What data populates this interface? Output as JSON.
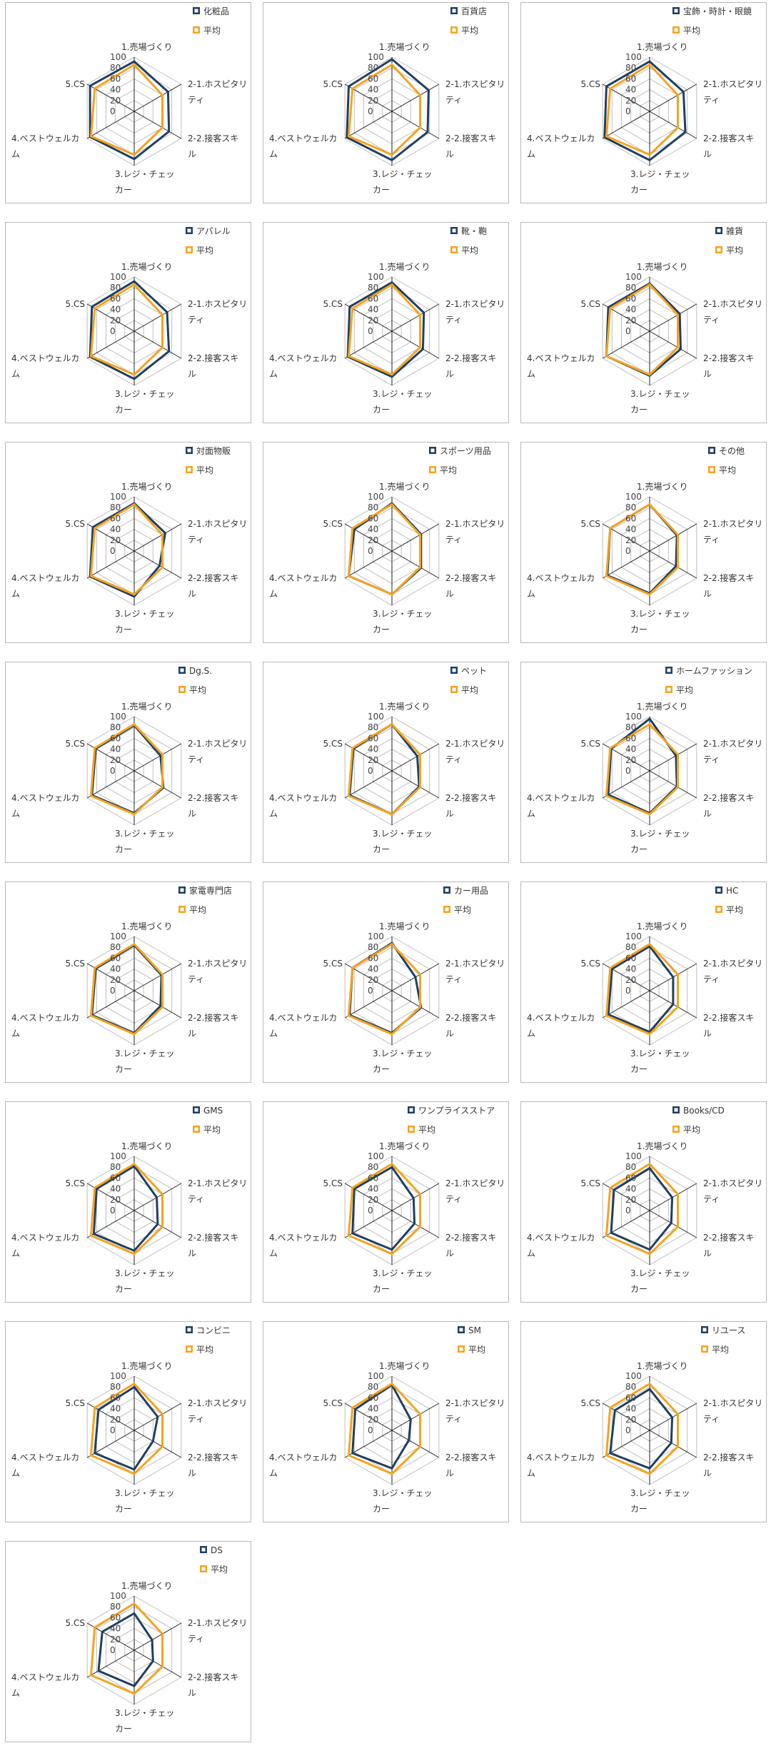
{
  "legend_average": "平均",
  "colors": {
    "category": "#1f3f63",
    "average": "#f5a31e",
    "grid": "#bfbfbf",
    "spoke": "#222222"
  },
  "axis_labels": [
    [
      "1.売場づくり"
    ],
    [
      "2-1.ホスピタリ",
      "ティ"
    ],
    [
      "2-2.接客スキ",
      "ル"
    ],
    [
      "3.レジ・チェッ",
      "カー"
    ],
    [
      "4.ベストウェルカ",
      "ム"
    ],
    [
      "5.CS"
    ]
  ],
  "chart_data": [
    {
      "type": "radar",
      "title": "化粧品",
      "ylim": [
        0,
        100
      ],
      "ticks": [
        0,
        20,
        40,
        60,
        80,
        100
      ],
      "categories": [
        "1.売場づくり",
        "2-1.ホスピタリティ",
        "2-2.接客スキル",
        "3.レジ・チェッカー",
        "4.ベストウェルカム",
        "5.CS"
      ],
      "series": [
        {
          "name": "化粧品",
          "values": [
            92,
            72,
            74,
            88,
            94,
            94
          ]
        },
        {
          "name": "平均",
          "values": [
            86,
            60,
            60,
            80,
            92,
            84
          ]
        }
      ]
    },
    {
      "type": "radar",
      "title": "百貨店",
      "ylim": [
        0,
        100
      ],
      "ticks": [
        0,
        20,
        40,
        60,
        80,
        100
      ],
      "categories": [
        "1.売場づくり",
        "2-1.ホスピタリティ",
        "2-2.接客スキル",
        "3.レジ・チェッカー",
        "4.ベストウェルカム",
        "5.CS"
      ],
      "series": [
        {
          "name": "百貨店",
          "values": [
            96,
            78,
            76,
            90,
            96,
            92
          ]
        },
        {
          "name": "平均",
          "values": [
            86,
            60,
            60,
            80,
            92,
            84
          ]
        }
      ]
    },
    {
      "type": "radar",
      "title": "宝飾・時計・眼鏡",
      "ylim": [
        0,
        100
      ],
      "ticks": [
        0,
        20,
        40,
        60,
        80,
        100
      ],
      "categories": [
        "1.売場づくり",
        "2-1.ホスピタリティ",
        "2-2.接客スキル",
        "3.レジ・チェッカー",
        "4.ベストウェルカム",
        "5.CS"
      ],
      "series": [
        {
          "name": "宝飾・時計・眼鏡",
          "values": [
            92,
            72,
            76,
            90,
            96,
            92
          ]
        },
        {
          "name": "平均",
          "values": [
            86,
            60,
            60,
            80,
            92,
            84
          ]
        }
      ]
    },
    {
      "type": "radar",
      "title": "アパレル",
      "ylim": [
        0,
        100
      ],
      "ticks": [
        0,
        20,
        40,
        60,
        80,
        100
      ],
      "categories": [
        "1.売場づくり",
        "2-1.ホスピタリティ",
        "2-2.接客スキル",
        "3.レジ・チェッカー",
        "4.ベストウェルカム",
        "5.CS"
      ],
      "series": [
        {
          "name": "アパレル",
          "values": [
            92,
            70,
            74,
            88,
            94,
            90
          ]
        },
        {
          "name": "平均",
          "values": [
            86,
            60,
            60,
            80,
            92,
            84
          ]
        }
      ]
    },
    {
      "type": "radar",
      "title": "靴・鞄",
      "ylim": [
        0,
        100
      ],
      "ticks": [
        0,
        20,
        40,
        60,
        80,
        100
      ],
      "categories": [
        "1.売場づくり",
        "2-1.ホスピタリティ",
        "2-2.接客スキル",
        "3.レジ・チェッカー",
        "4.ベストウェルカム",
        "5.CS"
      ],
      "series": [
        {
          "name": "靴・鞄",
          "values": [
            90,
            68,
            66,
            84,
            94,
            90
          ]
        },
        {
          "name": "平均",
          "values": [
            86,
            60,
            60,
            80,
            92,
            84
          ]
        }
      ]
    },
    {
      "type": "radar",
      "title": "雑貨",
      "ylim": [
        0,
        100
      ],
      "ticks": [
        0,
        20,
        40,
        60,
        80,
        100
      ],
      "categories": [
        "1.売場づくり",
        "2-1.ホスピタリティ",
        "2-2.接客スキル",
        "3.レジ・チェッカー",
        "4.ベストウェルカム",
        "5.CS"
      ],
      "series": [
        {
          "name": "雑貨",
          "values": [
            88,
            64,
            66,
            82,
            92,
            88
          ]
        },
        {
          "name": "平均",
          "values": [
            86,
            60,
            60,
            80,
            92,
            84
          ]
        }
      ]
    },
    {
      "type": "radar",
      "title": "対面物販",
      "ylim": [
        0,
        100
      ],
      "ticks": [
        0,
        20,
        40,
        60,
        80,
        100
      ],
      "categories": [
        "1.売場づくり",
        "2-1.ホスピタリティ",
        "2-2.接客スキル",
        "3.レジ・チェッカー",
        "4.ベストウェルカム",
        "5.CS"
      ],
      "series": [
        {
          "name": "対面物販",
          "values": [
            88,
            66,
            54,
            84,
            94,
            88
          ]
        },
        {
          "name": "平均",
          "values": [
            86,
            60,
            60,
            80,
            92,
            84
          ]
        }
      ]
    },
    {
      "type": "radar",
      "title": "スポーツ用品",
      "ylim": [
        0,
        100
      ],
      "ticks": [
        0,
        20,
        40,
        60,
        80,
        100
      ],
      "categories": [
        "1.売場づくり",
        "2-1.ホスピタリティ",
        "2-2.接客スキル",
        "3.レジ・チェッカー",
        "4.ベストウェルカム",
        "5.CS"
      ],
      "series": [
        {
          "name": "スポーツ用品",
          "values": [
            88,
            62,
            62,
            80,
            92,
            80
          ]
        },
        {
          "name": "平均",
          "values": [
            86,
            60,
            60,
            80,
            92,
            84
          ]
        }
      ]
    },
    {
      "type": "radar",
      "title": "その他",
      "ylim": [
        0,
        100
      ],
      "ticks": [
        0,
        20,
        40,
        60,
        80,
        100
      ],
      "categories": [
        "1.売場づくり",
        "2-1.ホスピタリティ",
        "2-2.接客スキル",
        "3.レジ・チェッカー",
        "4.ベストウェルカム",
        "5.CS"
      ],
      "series": [
        {
          "name": "その他",
          "values": [
            86,
            58,
            56,
            78,
            90,
            84
          ]
        },
        {
          "name": "平均",
          "values": [
            86,
            60,
            60,
            80,
            92,
            84
          ]
        }
      ]
    },
    {
      "type": "radar",
      "title": "Dg.S.",
      "ylim": [
        0,
        100
      ],
      "ticks": [
        0,
        20,
        40,
        60,
        80,
        100
      ],
      "categories": [
        "1.売場づくり",
        "2-1.ホスピタリティ",
        "2-2.接客スキル",
        "3.レジ・チェッカー",
        "4.ベストウェルカム",
        "5.CS"
      ],
      "series": [
        {
          "name": "Dg.S.",
          "values": [
            84,
            56,
            62,
            78,
            90,
            82
          ]
        },
        {
          "name": "平均",
          "values": [
            86,
            60,
            60,
            80,
            92,
            84
          ]
        }
      ]
    },
    {
      "type": "radar",
      "title": "ペット",
      "ylim": [
        0,
        100
      ],
      "ticks": [
        0,
        20,
        40,
        60,
        80,
        100
      ],
      "categories": [
        "1.売場づくり",
        "2-1.ホスピタリティ",
        "2-2.接客スキル",
        "3.レジ・チェッカー",
        "4.ベストウェルカム",
        "5.CS"
      ],
      "series": [
        {
          "name": "ペット",
          "values": [
            86,
            54,
            58,
            80,
            90,
            82
          ]
        },
        {
          "name": "平均",
          "values": [
            86,
            60,
            60,
            80,
            92,
            84
          ]
        }
      ]
    },
    {
      "type": "radar",
      "title": "ホームファッション",
      "ylim": [
        0,
        100
      ],
      "ticks": [
        0,
        20,
        40,
        60,
        80,
        100
      ],
      "categories": [
        "1.売場づくり",
        "2-1.ホスピタリティ",
        "2-2.接客スキル",
        "3.レジ・チェッカー",
        "4.ベストウェルカム",
        "5.CS"
      ],
      "series": [
        {
          "name": "ホームファッション",
          "values": [
            96,
            56,
            58,
            78,
            88,
            82
          ]
        },
        {
          "name": "平均",
          "values": [
            86,
            60,
            60,
            80,
            92,
            84
          ]
        }
      ]
    },
    {
      "type": "radar",
      "title": "家電専門店",
      "ylim": [
        0,
        100
      ],
      "ticks": [
        0,
        20,
        40,
        60,
        80,
        100
      ],
      "categories": [
        "1.売場づくり",
        "2-1.ホスピタリティ",
        "2-2.接客スキル",
        "3.レジ・チェッカー",
        "4.ベストウェルカム",
        "5.CS"
      ],
      "series": [
        {
          "name": "家電専門店",
          "values": [
            84,
            58,
            56,
            78,
            90,
            82
          ]
        },
        {
          "name": "平均",
          "values": [
            86,
            60,
            60,
            80,
            92,
            84
          ]
        }
      ]
    },
    {
      "type": "radar",
      "title": "カー用品",
      "ylim": [
        0,
        100
      ],
      "ticks": [
        0,
        20,
        40,
        60,
        80,
        100
      ],
      "categories": [
        "1.売場づくり",
        "2-1.ホスピタリティ",
        "2-2.接客スキル",
        "3.レジ・チェッカー",
        "4.ベストウェルカム",
        "5.CS"
      ],
      "series": [
        {
          "name": "カー用品",
          "values": [
            88,
            50,
            62,
            78,
            90,
            84
          ]
        },
        {
          "name": "平均",
          "values": [
            86,
            60,
            60,
            80,
            92,
            84
          ]
        }
      ]
    },
    {
      "type": "radar",
      "title": "HC",
      "ylim": [
        0,
        100
      ],
      "ticks": [
        0,
        20,
        40,
        60,
        80,
        100
      ],
      "categories": [
        "1.売場づくり",
        "2-1.ホスピタリティ",
        "2-2.接客スキル",
        "3.レジ・チェッカー",
        "4.ベストウェルカム",
        "5.CS"
      ],
      "series": [
        {
          "name": "HC",
          "values": [
            82,
            50,
            50,
            76,
            88,
            80
          ]
        },
        {
          "name": "平均",
          "values": [
            86,
            60,
            60,
            80,
            92,
            84
          ]
        }
      ]
    },
    {
      "type": "radar",
      "title": "GMS",
      "ylim": [
        0,
        100
      ],
      "ticks": [
        0,
        20,
        40,
        60,
        80,
        100
      ],
      "categories": [
        "1.売場づくり",
        "2-1.ホスピタリティ",
        "2-2.接客スキル",
        "3.レジ・チェッカー",
        "4.ベストウェルカム",
        "5.CS"
      ],
      "series": [
        {
          "name": "GMS",
          "values": [
            82,
            48,
            50,
            74,
            86,
            80
          ]
        },
        {
          "name": "平均",
          "values": [
            86,
            60,
            60,
            80,
            92,
            84
          ]
        }
      ]
    },
    {
      "type": "radar",
      "title": "ワンプライスストア",
      "ylim": [
        0,
        100
      ],
      "ticks": [
        0,
        20,
        40,
        60,
        80,
        100
      ],
      "categories": [
        "1.売場づくり",
        "2-1.ホスピタリティ",
        "2-2.接客スキル",
        "3.レジ・チェッカー",
        "4.ベストウェルカム",
        "5.CS"
      ],
      "series": [
        {
          "name": "ワンプライスストア",
          "values": [
            80,
            46,
            48,
            72,
            84,
            80
          ]
        },
        {
          "name": "平均",
          "values": [
            86,
            60,
            60,
            80,
            92,
            84
          ]
        }
      ]
    },
    {
      "type": "radar",
      "title": "Books/CD",
      "ylim": [
        0,
        100
      ],
      "ticks": [
        0,
        20,
        40,
        60,
        80,
        100
      ],
      "categories": [
        "1.売場づくり",
        "2-1.ホスピタリティ",
        "2-2.接客スキル",
        "3.レジ・チェッカー",
        "4.ベストウェルカム",
        "5.CS"
      ],
      "series": [
        {
          "name": "Books/CD",
          "values": [
            78,
            48,
            46,
            72,
            82,
            76
          ]
        },
        {
          "name": "平均",
          "values": [
            86,
            60,
            60,
            80,
            92,
            84
          ]
        }
      ]
    },
    {
      "type": "radar",
      "title": "コンビニ",
      "ylim": [
        0,
        100
      ],
      "ticks": [
        0,
        20,
        40,
        60,
        80,
        100
      ],
      "categories": [
        "1.売場づくり",
        "2-1.ホスピタリティ",
        "2-2.接客スキル",
        "3.レジ・チェッカー",
        "4.ベストウェルカム",
        "5.CS"
      ],
      "series": [
        {
          "name": "コンビニ",
          "values": [
            80,
            50,
            40,
            72,
            84,
            76
          ]
        },
        {
          "name": "平均",
          "values": [
            86,
            60,
            60,
            80,
            92,
            84
          ]
        }
      ]
    },
    {
      "type": "radar",
      "title": "SM",
      "ylim": [
        0,
        100
      ],
      "ticks": [
        0,
        20,
        40,
        60,
        80,
        100
      ],
      "categories": [
        "1.売場づくり",
        "2-1.ホスピタリティ",
        "2-2.接客スキル",
        "3.レジ・チェッカー",
        "4.ベストウェルカム",
        "5.CS"
      ],
      "series": [
        {
          "name": "SM",
          "values": [
            84,
            40,
            36,
            70,
            84,
            78
          ]
        },
        {
          "name": "平均",
          "values": [
            86,
            60,
            60,
            80,
            92,
            84
          ]
        }
      ]
    },
    {
      "type": "radar",
      "title": "リユース",
      "ylim": [
        0,
        100
      ],
      "ticks": [
        0,
        20,
        40,
        60,
        80,
        100
      ],
      "categories": [
        "1.売場づくり",
        "2-1.ホスピタリティ",
        "2-2.接客スキル",
        "3.レジ・チェッカー",
        "4.ベストウェルカム",
        "5.CS"
      ],
      "series": [
        {
          "name": "リユース",
          "values": [
            76,
            48,
            46,
            70,
            84,
            74
          ]
        },
        {
          "name": "平均",
          "values": [
            86,
            60,
            60,
            80,
            92,
            84
          ]
        }
      ]
    },
    {
      "type": "radar",
      "title": "DS",
      "ylim": [
        0,
        100
      ],
      "ticks": [
        0,
        20,
        40,
        60,
        80,
        100
      ],
      "categories": [
        "1.売場づくり",
        "2-1.ホスピタリティ",
        "2-2.接客スキル",
        "3.レジ・チェッカー",
        "4.ベストウェルカム",
        "5.CS"
      ],
      "series": [
        {
          "name": "DS",
          "values": [
            68,
            38,
            40,
            66,
            76,
            68
          ]
        },
        {
          "name": "平均",
          "values": [
            86,
            60,
            60,
            80,
            92,
            84
          ]
        }
      ]
    }
  ]
}
